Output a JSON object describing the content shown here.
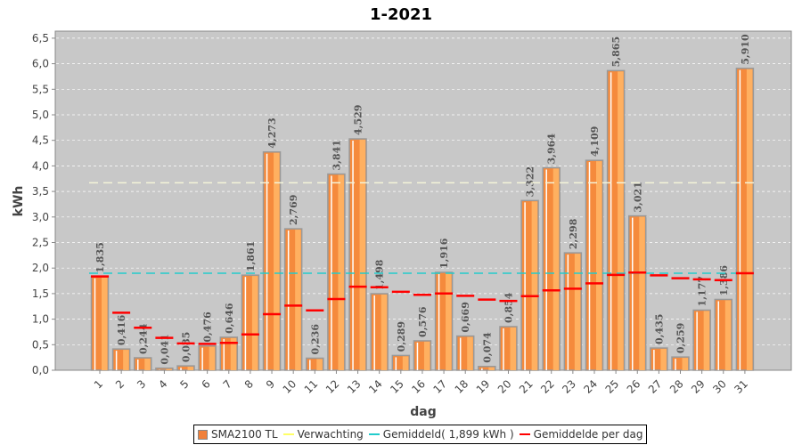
{
  "chart_data": {
    "type": "bar",
    "title": "1-2021",
    "xlabel": "dag",
    "ylabel": "kWh",
    "ylim": [
      0,
      6.64
    ],
    "yticks": [
      "0,0",
      "0,5",
      "1,0",
      "1,5",
      "2,0",
      "2,5",
      "3,0",
      "3,5",
      "4,0",
      "4,5",
      "5,0",
      "5,5",
      "6,0",
      "6,5"
    ],
    "categories": [
      "1",
      "2",
      "3",
      "4",
      "5",
      "6",
      "7",
      "8",
      "9",
      "10",
      "11",
      "12",
      "13",
      "14",
      "15",
      "16",
      "17",
      "18",
      "19",
      "20",
      "21",
      "22",
      "23",
      "24",
      "25",
      "26",
      "27",
      "28",
      "29",
      "30",
      "31"
    ],
    "series": [
      {
        "name": "SMA2100 TL",
        "color": "#f0803a",
        "values": [
          1.835,
          0.416,
          0.244,
          0.041,
          0.085,
          0.476,
          0.646,
          1.861,
          4.273,
          2.769,
          0.236,
          3.841,
          4.529,
          1.498,
          0.289,
          0.576,
          1.916,
          0.669,
          0.074,
          0.854,
          3.322,
          3.964,
          2.298,
          4.109,
          5.865,
          3.021,
          0.435,
          0.259,
          1.177,
          1.386,
          5.91
        ],
        "labels": [
          "1,835",
          "0,416",
          "0,244",
          "0,041",
          "0,085",
          "0,476",
          "0,646",
          "1,861",
          "4,273",
          "2,769",
          "0,236",
          "3,841",
          "4,529",
          "1,498",
          "0,289",
          "0,576",
          "1,916",
          "0,669",
          "0,074",
          "0,854",
          "3,322",
          "3,964",
          "2,298",
          "4,109",
          "5,865",
          "3,021",
          "0,435",
          "0,259",
          "1,177",
          "1,386",
          "5,910"
        ]
      },
      {
        "name": "Verwachting",
        "color": "#ffff66",
        "value": 3.67
      },
      {
        "name": "Gemiddeld( 1,899 kWh )",
        "color": "#22cccc",
        "value": 1.899
      },
      {
        "name": "Gemiddelde per dag",
        "color": "#ff0000",
        "values": [
          1.835,
          1.126,
          0.832,
          0.634,
          0.524,
          0.516,
          0.535,
          0.701,
          1.097,
          1.265,
          1.171,
          1.394,
          1.635,
          1.625,
          1.536,
          1.476,
          1.502,
          1.456,
          1.383,
          1.356,
          1.45,
          1.564,
          1.596,
          1.701,
          1.867,
          1.912,
          1.857,
          1.8,
          1.779,
          1.765,
          1.899
        ]
      }
    ],
    "grid": true,
    "legend": "bottom"
  }
}
